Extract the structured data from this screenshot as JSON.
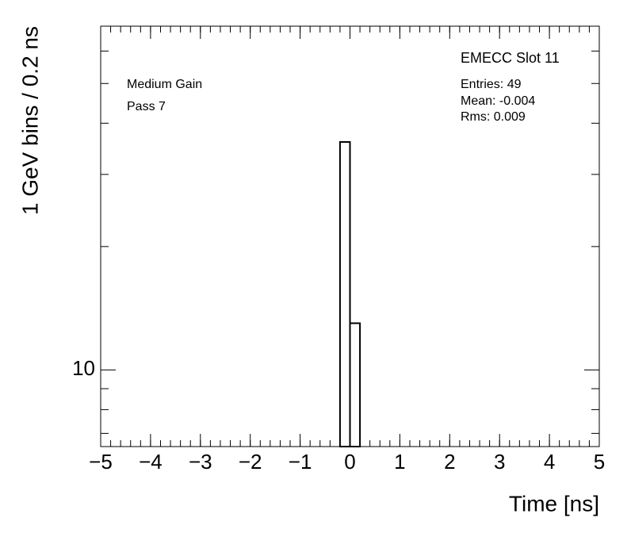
{
  "chart_data": {
    "type": "histogram",
    "bins": [
      -5,
      -4.8,
      -4.6,
      -4.4,
      -4.2,
      -4,
      -3.8,
      -3.6,
      -3.4,
      -3.2,
      -3,
      -2.8,
      -2.6,
      -2.4,
      -2.2,
      -2,
      -1.8,
      -1.6,
      -1.4,
      -1.2,
      -1,
      -0.8,
      -0.6,
      -0.4,
      -0.2,
      0,
      0.2,
      0.4,
      0.6,
      0.8,
      1,
      1.2,
      1.4,
      1.6,
      1.8,
      2,
      2.2,
      2.4,
      2.6,
      2.8,
      3,
      3.2,
      3.4,
      3.6,
      3.8,
      4,
      4.2,
      4.4,
      4.6,
      4.8,
      5
    ],
    "counts": [
      0,
      0,
      0,
      0,
      0,
      0,
      0,
      0,
      0,
      0,
      0,
      0,
      0,
      0,
      0,
      0,
      0,
      0,
      0,
      0,
      0,
      0,
      0,
      0,
      36,
      13,
      0,
      0,
      0,
      0,
      0,
      0,
      0,
      0,
      0,
      0,
      0,
      0,
      0,
      0,
      0,
      0,
      0,
      0,
      0,
      0,
      0,
      0,
      0,
      0
    ],
    "color": "#000000",
    "xlabel": "Time [ns]",
    "ylabel": "1 GeV bins / 0.2 ns",
    "xlim": [
      -5,
      5
    ],
    "xticks": [
      {
        "value": -5,
        "label": "−5"
      },
      {
        "value": -4,
        "label": "−4"
      },
      {
        "value": -3,
        "label": "−3"
      },
      {
        "value": -2,
        "label": "−2"
      },
      {
        "value": -1,
        "label": "−1"
      },
      0,
      1,
      2,
      3,
      4,
      5
    ],
    "ylim": [
      6.5,
      69
    ],
    "ylog": true,
    "yticks": [
      10
    ],
    "yminor": [
      7,
      8,
      9,
      20,
      30,
      40,
      50,
      60
    ],
    "annotations": [
      "Medium Gain",
      "Pass 7"
    ],
    "stats": {
      "title": "EMECC Slot 11",
      "lines": [
        "Entries: 49",
        "Mean: -0.004",
        "Rms: 0.009"
      ]
    }
  }
}
